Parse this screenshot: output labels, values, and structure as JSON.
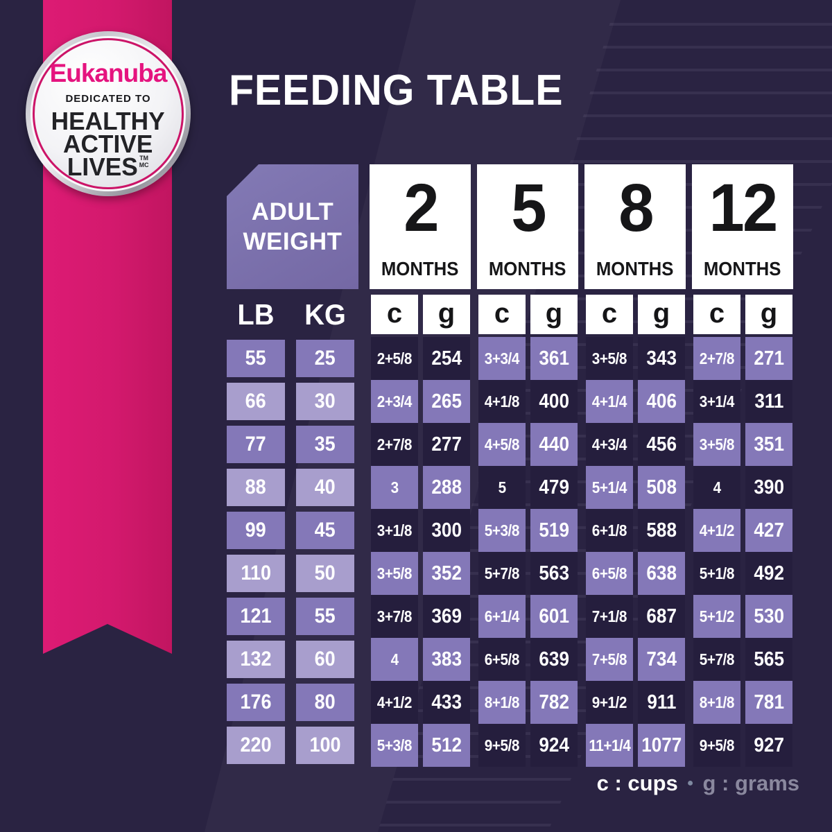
{
  "title": "FEEDING TABLE",
  "badge": {
    "brand": "Eukanuba",
    "tagline": "DEDICATED TO",
    "line1": "HEALTHY",
    "line2": "ACTIVE",
    "line3": "LIVES",
    "tm": "TM",
    "mc": "MC"
  },
  "table": {
    "corner": {
      "line1": "ADULT",
      "line2": "WEIGHT"
    },
    "weight_units": [
      "LB",
      "KG"
    ],
    "unit_labels": [
      "c",
      "g"
    ],
    "month_groups": [
      {
        "number": "2",
        "label": "MONTHS"
      },
      {
        "number": "5",
        "label": "MONTHS"
      },
      {
        "number": "8",
        "label": "MONTHS"
      },
      {
        "number": "12",
        "label": "MONTHS"
      }
    ],
    "rows": [
      {
        "lb": "55",
        "kg": "25",
        "m2": {
          "c": "2+5/8",
          "g": "254"
        },
        "m5": {
          "c": "3+3/4",
          "g": "361"
        },
        "m8": {
          "c": "3+5/8",
          "g": "343"
        },
        "m12": {
          "c": "2+7/8",
          "g": "271"
        }
      },
      {
        "lb": "66",
        "kg": "30",
        "m2": {
          "c": "2+3/4",
          "g": "265"
        },
        "m5": {
          "c": "4+1/8",
          "g": "400"
        },
        "m8": {
          "c": "4+1/4",
          "g": "406"
        },
        "m12": {
          "c": "3+1/4",
          "g": "311"
        }
      },
      {
        "lb": "77",
        "kg": "35",
        "m2": {
          "c": "2+7/8",
          "g": "277"
        },
        "m5": {
          "c": "4+5/8",
          "g": "440"
        },
        "m8": {
          "c": "4+3/4",
          "g": "456"
        },
        "m12": {
          "c": "3+5/8",
          "g": "351"
        }
      },
      {
        "lb": "88",
        "kg": "40",
        "m2": {
          "c": "3",
          "g": "288"
        },
        "m5": {
          "c": "5",
          "g": "479"
        },
        "m8": {
          "c": "5+1/4",
          "g": "508"
        },
        "m12": {
          "c": "4",
          "g": "390"
        }
      },
      {
        "lb": "99",
        "kg": "45",
        "m2": {
          "c": "3+1/8",
          "g": "300"
        },
        "m5": {
          "c": "5+3/8",
          "g": "519"
        },
        "m8": {
          "c": "6+1/8",
          "g": "588"
        },
        "m12": {
          "c": "4+1/2",
          "g": "427"
        }
      },
      {
        "lb": "110",
        "kg": "50",
        "m2": {
          "c": "3+5/8",
          "g": "352"
        },
        "m5": {
          "c": "5+7/8",
          "g": "563"
        },
        "m8": {
          "c": "6+5/8",
          "g": "638"
        },
        "m12": {
          "c": "5+1/8",
          "g": "492"
        }
      },
      {
        "lb": "121",
        "kg": "55",
        "m2": {
          "c": "3+7/8",
          "g": "369"
        },
        "m5": {
          "c": "6+1/4",
          "g": "601"
        },
        "m8": {
          "c": "7+1/8",
          "g": "687"
        },
        "m12": {
          "c": "5+1/2",
          "g": "530"
        }
      },
      {
        "lb": "132",
        "kg": "60",
        "m2": {
          "c": "4",
          "g": "383"
        },
        "m5": {
          "c": "6+5/8",
          "g": "639"
        },
        "m8": {
          "c": "7+5/8",
          "g": "734"
        },
        "m12": {
          "c": "5+7/8",
          "g": "565"
        }
      },
      {
        "lb": "176",
        "kg": "80",
        "m2": {
          "c": "4+1/2",
          "g": "433"
        },
        "m5": {
          "c": "8+1/8",
          "g": "782"
        },
        "m8": {
          "c": "9+1/2",
          "g": "911"
        },
        "m12": {
          "c": "8+1/8",
          "g": "781"
        }
      },
      {
        "lb": "220",
        "kg": "100",
        "m2": {
          "c": "5+3/8",
          "g": "512"
        },
        "m5": {
          "c": "9+5/8",
          "g": "924"
        },
        "m8": {
          "c": "11+1/4",
          "g": "1077"
        },
        "m12": {
          "c": "9+5/8",
          "g": "927"
        }
      }
    ]
  },
  "legend": {
    "cups": "c : cups",
    "separator": "●",
    "grams": "g : grams"
  },
  "colors": {
    "background": "#2a2342",
    "ribbon_pink": "#d3196d",
    "logo_pink": "#e5147f",
    "cell_dark": "#251e3d",
    "cell_purple": "#8478b8",
    "cell_light": "#a89ecd",
    "corner_purple": "#7b70ad",
    "header_white": "#ffffff",
    "legend_gray": "#8a889e"
  }
}
